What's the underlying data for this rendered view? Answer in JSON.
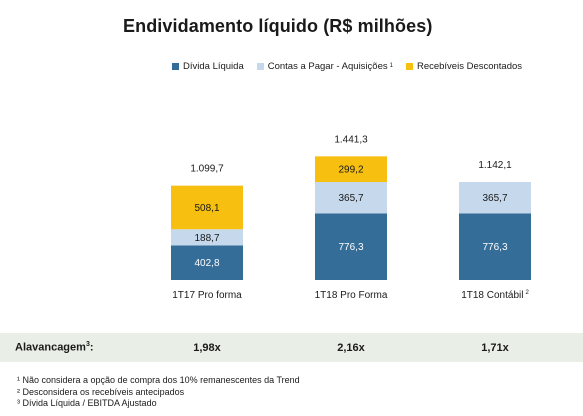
{
  "title": "Endividamento líquido (R$ milhões)",
  "legend": [
    {
      "label": "Dívida Líquida",
      "sup": "",
      "color": "#356d99"
    },
    {
      "label": "Contas a Pagar - Aquisições",
      "sup": "1",
      "color": "#c5d8ec"
    },
    {
      "label": "Recebíveis Descontados",
      "sup": "",
      "color": "#f7bf0f"
    }
  ],
  "chart_data": {
    "type": "bar",
    "stacked": true,
    "categories": [
      "1T17 Pro forma",
      "1T18 Pro Forma",
      "1T18 Contábil"
    ],
    "category_sups": [
      "",
      "",
      "2"
    ],
    "series": [
      {
        "name": "Dívida Líquida",
        "color": "#356d99",
        "values": [
          402.8,
          776.3,
          776.3
        ],
        "labels": [
          "402,8",
          "776,3",
          "776,3"
        ]
      },
      {
        "name": "Contas a Pagar - Aquisições",
        "color": "#c5d8ec",
        "values": [
          188.7,
          365.7,
          365.7
        ],
        "labels": [
          "188,7",
          "365,7",
          "365,7"
        ]
      },
      {
        "name": "Recebíveis Descontados",
        "color": "#f7bf0f",
        "values": [
          508.1,
          299.2,
          0
        ],
        "labels": [
          "508,1",
          "299,2",
          ""
        ]
      }
    ],
    "totals": [
      1099.7,
      1441.3,
      1142.1
    ],
    "total_labels": [
      "1.099,7",
      "1.441,3",
      "1.142,1"
    ],
    "legend_position": "top",
    "grid": false
  },
  "metric_row": {
    "label": "Alavancagem",
    "sup": "3",
    "suffix": ":",
    "values": [
      "1,98x",
      "2,16x",
      "1,71x"
    ]
  },
  "footnotes": [
    "¹ Não considera a opção de compra dos 10% remanescentes da Trend",
    "² Desconsidera os recebíveis antecipados",
    "³ Dívida Líquida / EBITDA Ajustado"
  ]
}
